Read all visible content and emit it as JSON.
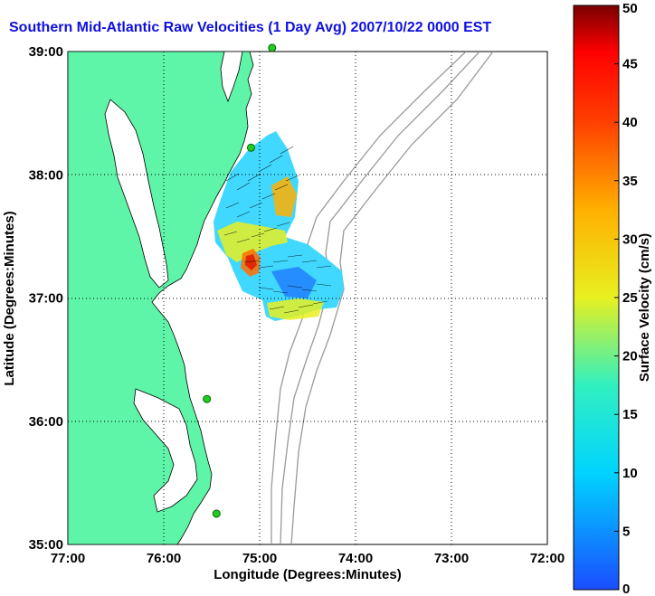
{
  "title": "Southern Mid-Atlantic Raw Velocities (1 Day Avg) 2007/10/22 0000 EST",
  "xlabel": "Longitude (Degrees:Minutes)",
  "ylabel": "Latitude (Degrees:Minutes)",
  "colorbar": {
    "label": "Surface Velocity (cm/s)",
    "min": 0,
    "max": 50,
    "ticks": [
      "50",
      "45",
      "40",
      "35",
      "30",
      "25",
      "20",
      "15",
      "10",
      "5",
      "0"
    ]
  },
  "x_ticks": [
    "77:00",
    "76:00",
    "75:00",
    "74:00",
    "73:00",
    "72:00"
  ],
  "y_ticks": [
    "39:00",
    "38:00",
    "37:00",
    "36:00",
    "35:00"
  ],
  "extent": {
    "lon": [
      -77,
      -72
    ],
    "lat": [
      35,
      39
    ]
  },
  "colors": {
    "land": "#5ff5a8",
    "title": "#1010e0",
    "bathymetry": "#999999",
    "station": "#22cc22"
  },
  "grid": true,
  "map_markers": [
    {
      "name": "station",
      "lon": -74.87,
      "lat": 39.03
    },
    {
      "name": "station",
      "lon": -75.09,
      "lat": 38.22
    },
    {
      "name": "station",
      "lon": -75.55,
      "lat": 36.18
    },
    {
      "name": "station",
      "lon": -75.45,
      "lat": 35.25
    }
  ]
}
